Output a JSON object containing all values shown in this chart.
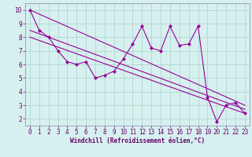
{
  "xlabel": "Windchill (Refroidissement éolien,°C)",
  "bg_color": "#d6f0f0",
  "line_color": "#990099",
  "grid_color": "#b0d8cc",
  "x_data": [
    0,
    1,
    2,
    3,
    4,
    5,
    6,
    7,
    8,
    9,
    10,
    11,
    12,
    13,
    14,
    15,
    16,
    17,
    18,
    19,
    20,
    21,
    22,
    23
  ],
  "y_data": [
    10.0,
    8.5,
    8.0,
    7.0,
    6.2,
    6.0,
    6.2,
    5.0,
    5.2,
    5.5,
    6.4,
    7.5,
    8.8,
    7.2,
    7.0,
    8.8,
    7.4,
    7.5,
    8.8,
    3.6,
    1.8,
    3.0,
    3.2,
    2.4
  ],
  "xlim": [
    -0.5,
    23.5
  ],
  "ylim": [
    1.5,
    10.5
  ],
  "xticks": [
    0,
    1,
    2,
    3,
    4,
    5,
    6,
    7,
    8,
    9,
    10,
    11,
    12,
    13,
    14,
    15,
    16,
    17,
    18,
    19,
    20,
    21,
    22,
    23
  ],
  "yticks": [
    2,
    3,
    4,
    5,
    6,
    7,
    8,
    9,
    10
  ],
  "trend_lines": [
    {
      "x": [
        0,
        23
      ],
      "y": [
        10.0,
        3.0
      ]
    },
    {
      "x": [
        0,
        23
      ],
      "y": [
        8.5,
        2.7
      ]
    },
    {
      "x": [
        0,
        23
      ],
      "y": [
        8.0,
        2.4
      ]
    }
  ],
  "tick_color": "#880088",
  "label_color": "#660066",
  "spine_color": "#8888aa",
  "marker": "D",
  "markersize": 2.0,
  "linewidth": 0.8,
  "xlabel_fontsize": 5.5,
  "tick_fontsize": 5.5
}
